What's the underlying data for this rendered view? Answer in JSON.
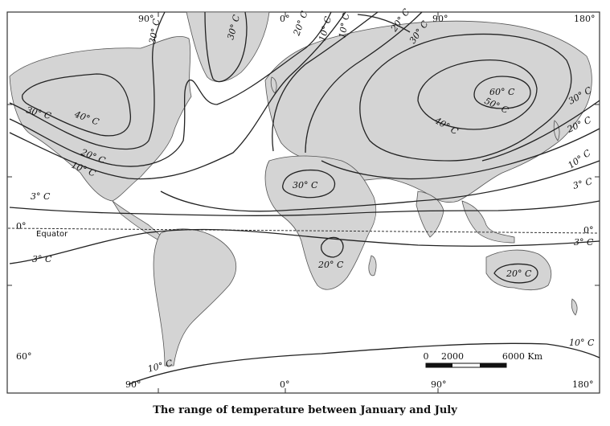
{
  "caption": "The range of temperature between January and July",
  "top_longitudes": [
    "90°",
    "0°",
    "90°",
    "180°"
  ],
  "bottom_longitudes": [
    "90°",
    "0°",
    "90°",
    "180°"
  ],
  "latitudes": [
    "0°",
    "60°"
  ],
  "equator_label": "Equator",
  "equator_right": "0°",
  "isotherm_labels": {
    "na_30": "30° C",
    "na_40": "40° C",
    "na_20": "20° C",
    "na_10": "10° C",
    "west_3_north": "3° C",
    "west_3_south": "3° C",
    "greenland_30a": "30° C",
    "greenland_30b": "30° C",
    "top_20": "20° C",
    "top_10a": "10° C",
    "top_10b": "10° C",
    "top_20b": "20° C",
    "top_30": "30° C",
    "asia_60": "60° C",
    "asia_50": "50° C",
    "asia_40": "40° C",
    "east_30": "30° C",
    "east_20": "20° C",
    "east_10": "10° C",
    "east_3": "3° C",
    "sahara_30": "30° C",
    "africa_20": "20° C",
    "australia_20": "20° C",
    "east_3_south": "3° C",
    "south_10_right": "10° C",
    "south_10_left": "10° C"
  },
  "scale": {
    "ticks": [
      "0",
      "2000",
      "6000 Km"
    ]
  }
}
